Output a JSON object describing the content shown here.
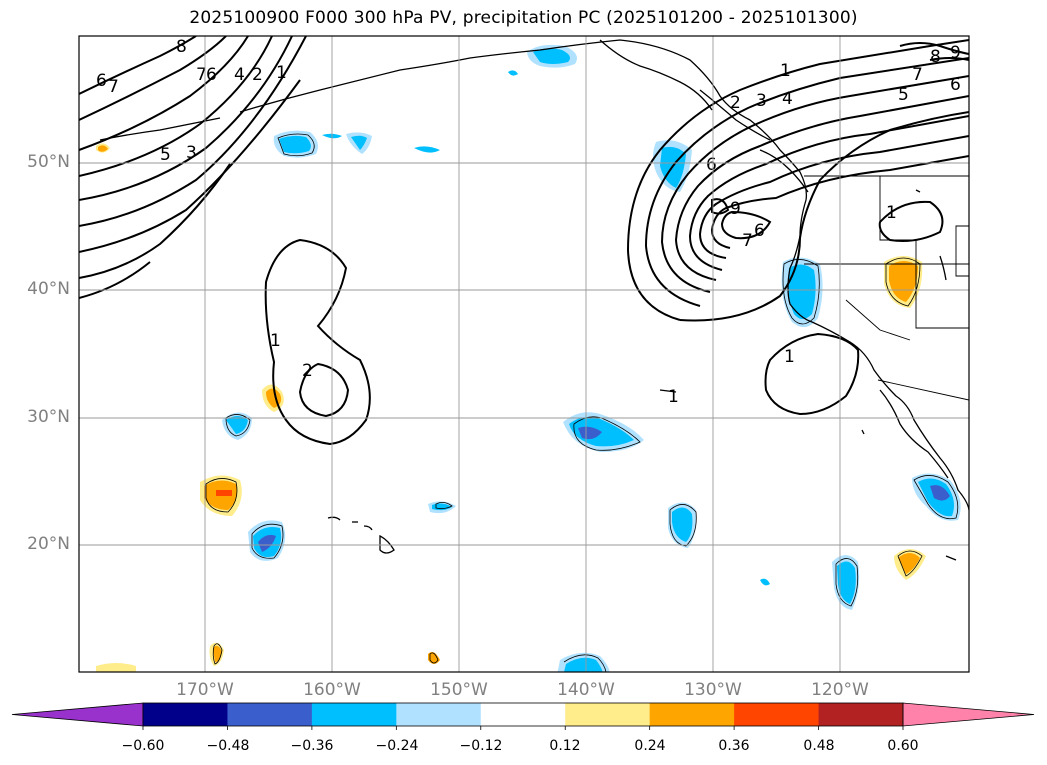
{
  "title": "2025100900 F000 300 hPa PV, precipitation PC (2025101200 - 2025101300)",
  "lat_labels": [
    "50°N",
    "40°N",
    "30°N",
    "20°N"
  ],
  "lon_labels": [
    "170°W",
    "160°W",
    "150°W",
    "140°W",
    "130°W",
    "120°W"
  ],
  "colorbar": {
    "ticks": [
      "−0.60",
      "−0.48",
      "−0.36",
      "−0.24",
      "−0.12",
      "0.12",
      "0.24",
      "0.36",
      "0.48",
      "0.60"
    ],
    "colors": [
      "#9932cc",
      "#00008b",
      "#3a5fcd",
      "#00bfff",
      "#b0e2ff",
      "#ffffff",
      "#ffec8b",
      "#ffa500",
      "#ff4500",
      "#b22222",
      "#ff82ab"
    ]
  },
  "pv_contour_labels": [
    "1",
    "2",
    "3",
    "4",
    "5",
    "6",
    "7",
    "8",
    "9"
  ]
}
